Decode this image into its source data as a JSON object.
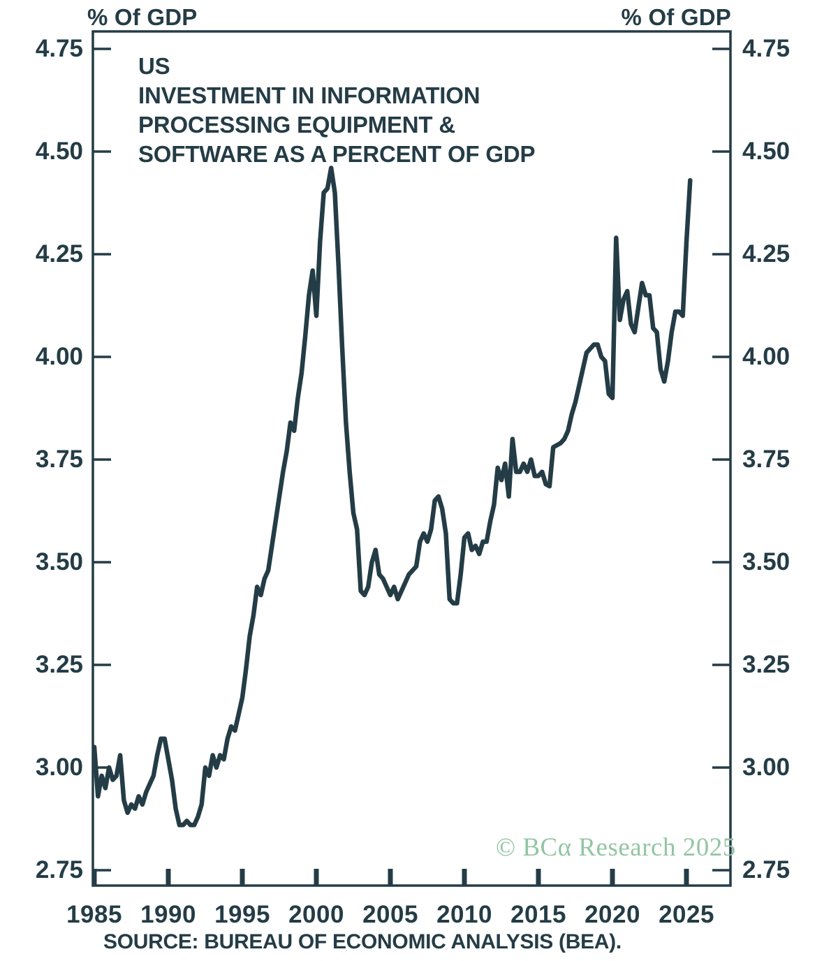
{
  "header": {
    "left_axis_title": "% Of GDP",
    "right_axis_title": "% Of GDP"
  },
  "title_lines": [
    "US",
    "INVESTMENT IN INFORMATION",
    "PROCESSING EQUIPMENT &",
    "SOFTWARE AS A PERCENT OF GDP"
  ],
  "watermark": "© BCα Research 2025",
  "source": "SOURCE: BUREAU OF ECONOMIC ANALYSIS (BEA).",
  "colors": {
    "line": "#243c46",
    "frame": "#243c46",
    "text": "#243c46",
    "watermark_green": "#92c5a3",
    "background": "#ffffff"
  },
  "chart_data": {
    "type": "line",
    "title": "US Investment in Information Processing Equipment & Software as a Percent of GDP",
    "ylabel": "% Of GDP",
    "ylim": [
      2.75,
      4.75
    ],
    "grid": false,
    "legend": null,
    "frequency": "quarterly",
    "x_start_year": 1985,
    "x_step_years": 0.25,
    "x_ticks": [
      1985,
      1990,
      1995,
      2000,
      2005,
      2010,
      2015,
      2020,
      2025
    ],
    "x_tick_labels": [
      "1985",
      "1990",
      "1995",
      "2000",
      "2005",
      "2010",
      "2015",
      "2020",
      "2025"
    ],
    "y_tick_labels": [
      "4.75",
      "4.50",
      "4.25",
      "4.00",
      "3.75",
      "3.50",
      "3.25",
      "3.00",
      "2.75"
    ],
    "values": [
      3.05,
      2.93,
      2.98,
      2.95,
      3.0,
      2.97,
      2.98,
      3.03,
      2.92,
      2.89,
      2.91,
      2.9,
      2.93,
      2.91,
      2.94,
      2.96,
      2.98,
      3.03,
      3.07,
      3.07,
      3.02,
      2.97,
      2.9,
      2.86,
      2.86,
      2.87,
      2.86,
      2.86,
      2.88,
      2.91,
      3.0,
      2.98,
      3.03,
      3.0,
      3.03,
      3.02,
      3.07,
      3.1,
      3.09,
      3.13,
      3.17,
      3.24,
      3.32,
      3.37,
      3.44,
      3.42,
      3.46,
      3.48,
      3.54,
      3.6,
      3.66,
      3.72,
      3.77,
      3.84,
      3.82,
      3.9,
      3.96,
      4.05,
      4.15,
      4.21,
      4.1,
      4.28,
      4.4,
      4.41,
      4.46,
      4.4,
      4.22,
      4.02,
      3.84,
      3.72,
      3.62,
      3.58,
      3.43,
      3.42,
      3.44,
      3.5,
      3.53,
      3.47,
      3.46,
      3.44,
      3.42,
      3.44,
      3.41,
      3.43,
      3.45,
      3.47,
      3.48,
      3.49,
      3.55,
      3.57,
      3.55,
      3.58,
      3.65,
      3.66,
      3.63,
      3.57,
      3.41,
      3.4,
      3.4,
      3.47,
      3.56,
      3.57,
      3.53,
      3.54,
      3.52,
      3.55,
      3.55,
      3.6,
      3.64,
      3.73,
      3.7,
      3.74,
      3.66,
      3.8,
      3.72,
      3.72,
      3.74,
      3.72,
      3.75,
      3.71,
      3.71,
      3.72,
      3.69,
      3.685,
      3.78,
      3.785,
      3.79,
      3.8,
      3.82,
      3.86,
      3.89,
      3.93,
      3.97,
      4.01,
      4.02,
      4.03,
      4.03,
      4.0,
      3.99,
      3.91,
      3.9,
      4.29,
      4.09,
      4.14,
      4.16,
      4.08,
      4.06,
      4.12,
      4.18,
      4.15,
      4.15,
      4.07,
      4.06,
      3.97,
      3.94,
      3.99,
      4.06,
      4.11,
      4.11,
      4.1,
      4.28,
      4.43
    ]
  }
}
